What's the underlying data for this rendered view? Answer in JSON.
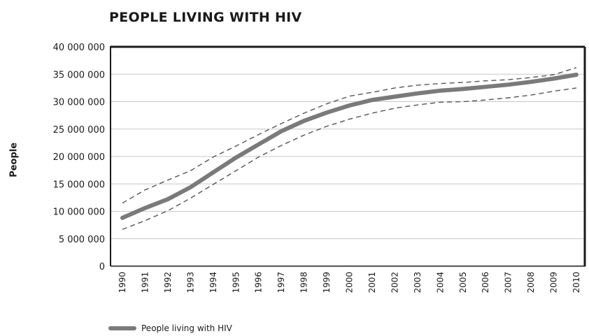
{
  "chart_data": {
    "type": "line",
    "title": "PEOPLE LIVING WITH HIV",
    "xlabel": "",
    "ylabel": "People",
    "ylim": [
      0,
      40000000
    ],
    "yticks": [
      0,
      5000000,
      10000000,
      15000000,
      20000000,
      25000000,
      30000000,
      35000000,
      40000000
    ],
    "ytick_labels": [
      "0",
      "5 000 000",
      "10 000 000",
      "15 000 000",
      "20 000 000",
      "25 000 000",
      "30 000 000",
      "35 000 000",
      "40 000 000"
    ],
    "x": [
      "1990",
      "1991",
      "1992",
      "1993",
      "1994",
      "1995",
      "1996",
      "1997",
      "1998",
      "1999",
      "2000",
      "2001",
      "2002",
      "2003",
      "2004",
      "2005",
      "2006",
      "2007",
      "2008",
      "2009",
      "2010"
    ],
    "grid": "horizontal",
    "legend_position": "bottom-left",
    "series": [
      {
        "name": "People living with HIV",
        "style": "solid",
        "color": "#7a7a7a",
        "values": [
          8800000,
          10600000,
          12200000,
          14400000,
          17100000,
          19800000,
          22200000,
          24600000,
          26500000,
          28000000,
          29300000,
          30300000,
          30900000,
          31500000,
          32000000,
          32300000,
          32700000,
          33100000,
          33600000,
          34200000,
          34900000
        ]
      },
      {
        "style": "dashed",
        "color": "#555555",
        "values": [
          11500000,
          13900000,
          15700000,
          17400000,
          19900000,
          21900000,
          24000000,
          26000000,
          27900000,
          29600000,
          31000000,
          31700000,
          32500000,
          33000000,
          33300000,
          33500000,
          33800000,
          34000000,
          34400000,
          34900000,
          36200000
        ]
      },
      {
        "style": "dashed",
        "color": "#555555",
        "values": [
          6700000,
          8300000,
          10100000,
          12400000,
          14900000,
          17400000,
          19900000,
          22000000,
          23900000,
          25500000,
          26800000,
          27900000,
          28800000,
          29400000,
          29900000,
          30000000,
          30300000,
          30700000,
          31200000,
          31900000,
          32500000
        ]
      }
    ]
  }
}
